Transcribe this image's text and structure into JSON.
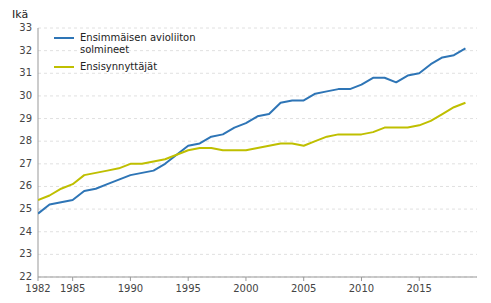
{
  "chart_data": {
    "type": "line",
    "ylabel": "Ikä",
    "x": [
      1982,
      1983,
      1984,
      1985,
      1986,
      1987,
      1988,
      1989,
      1990,
      1991,
      1992,
      1993,
      1994,
      1995,
      1996,
      1997,
      1998,
      1999,
      2000,
      2001,
      2002,
      2003,
      2004,
      2005,
      2006,
      2007,
      2008,
      2009,
      2010,
      2011,
      2012,
      2013,
      2014,
      2015,
      2016,
      2017,
      2018,
      2019
    ],
    "series": [
      {
        "name": "Ensimmäisen avioliiton\nsolmineet",
        "color": "#2E75B6",
        "values": [
          24.8,
          25.2,
          25.3,
          25.4,
          25.8,
          25.9,
          26.1,
          26.3,
          26.5,
          26.6,
          26.7,
          27.0,
          27.4,
          27.8,
          27.9,
          28.2,
          28.3,
          28.6,
          28.8,
          29.1,
          29.2,
          29.7,
          29.8,
          29.8,
          30.1,
          30.2,
          30.3,
          30.3,
          30.5,
          30.8,
          30.8,
          30.6,
          30.9,
          31.0,
          31.4,
          31.7,
          31.8,
          32.1
        ]
      },
      {
        "name": "Ensisynnyttäjät",
        "color": "#BFBF00",
        "values": [
          25.4,
          25.6,
          25.9,
          26.1,
          26.5,
          26.6,
          26.7,
          26.8,
          27.0,
          27.0,
          27.1,
          27.2,
          27.4,
          27.6,
          27.7,
          27.7,
          27.6,
          27.6,
          27.6,
          27.7,
          27.8,
          27.9,
          27.9,
          27.8,
          28.0,
          28.2,
          28.3,
          28.3,
          28.3,
          28.4,
          28.6,
          28.6,
          28.6,
          28.7,
          28.9,
          29.2,
          29.5,
          29.7
        ]
      }
    ],
    "xlim": [
      1982,
      2020
    ],
    "xticks": [
      1982,
      1985,
      1990,
      1995,
      2000,
      2005,
      2010,
      2015
    ],
    "ylim": [
      22,
      33
    ],
    "yticks": [
      22,
      23,
      24,
      25,
      26,
      27,
      28,
      29,
      30,
      31,
      32,
      33
    ],
    "grid": true,
    "legend": "upper left"
  }
}
